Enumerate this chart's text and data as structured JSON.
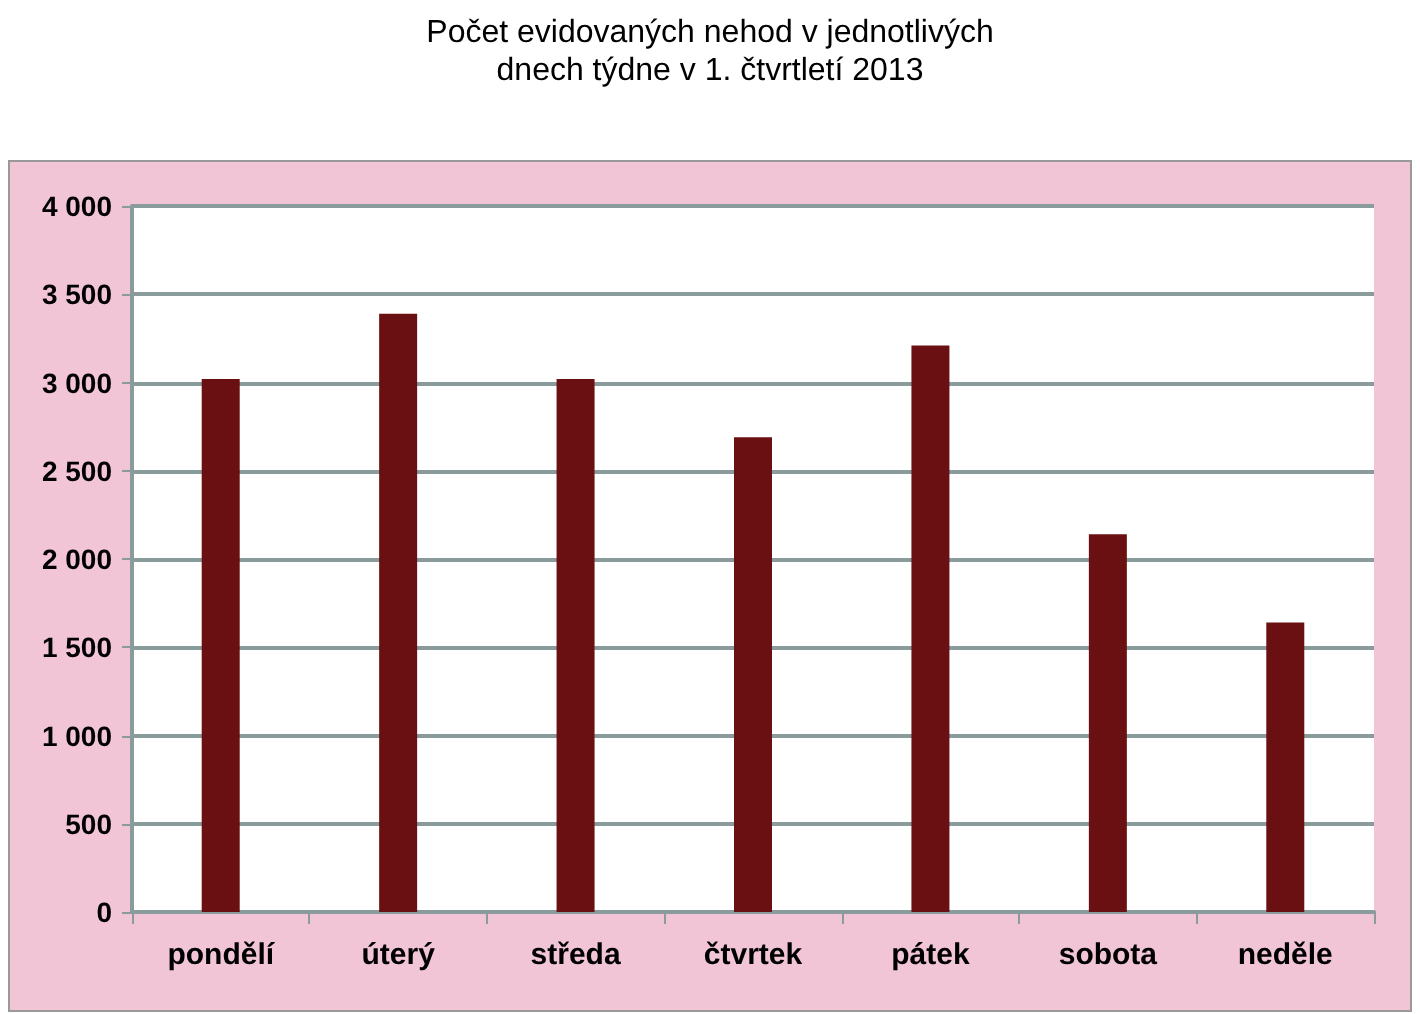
{
  "chart_data": {
    "type": "bar",
    "title": "Počet evidovaných nehod v jednotlivých\ndnech týdne v 1. čtvrtletí 2013",
    "categories": [
      "pondělí",
      "úterý",
      "středa",
      "čtvrtek",
      "pátek",
      "sobota",
      "neděle"
    ],
    "values": [
      3020,
      3390,
      3020,
      2690,
      3210,
      2140,
      1640
    ],
    "color": "#6b1012",
    "ylim": [
      0,
      4000
    ],
    "yticks": [
      {
        "value": 0,
        "label": "0"
      },
      {
        "value": 500,
        "label": "500"
      },
      {
        "value": 1000,
        "label": "1 000"
      },
      {
        "value": 1500,
        "label": "1 500"
      },
      {
        "value": 2000,
        "label": "2 000"
      },
      {
        "value": 2500,
        "label": "2 500"
      },
      {
        "value": 3000,
        "label": "3 000"
      },
      {
        "value": 3500,
        "label": "3 500"
      },
      {
        "value": 4000,
        "label": "4 000"
      }
    ],
    "grid": "y"
  }
}
